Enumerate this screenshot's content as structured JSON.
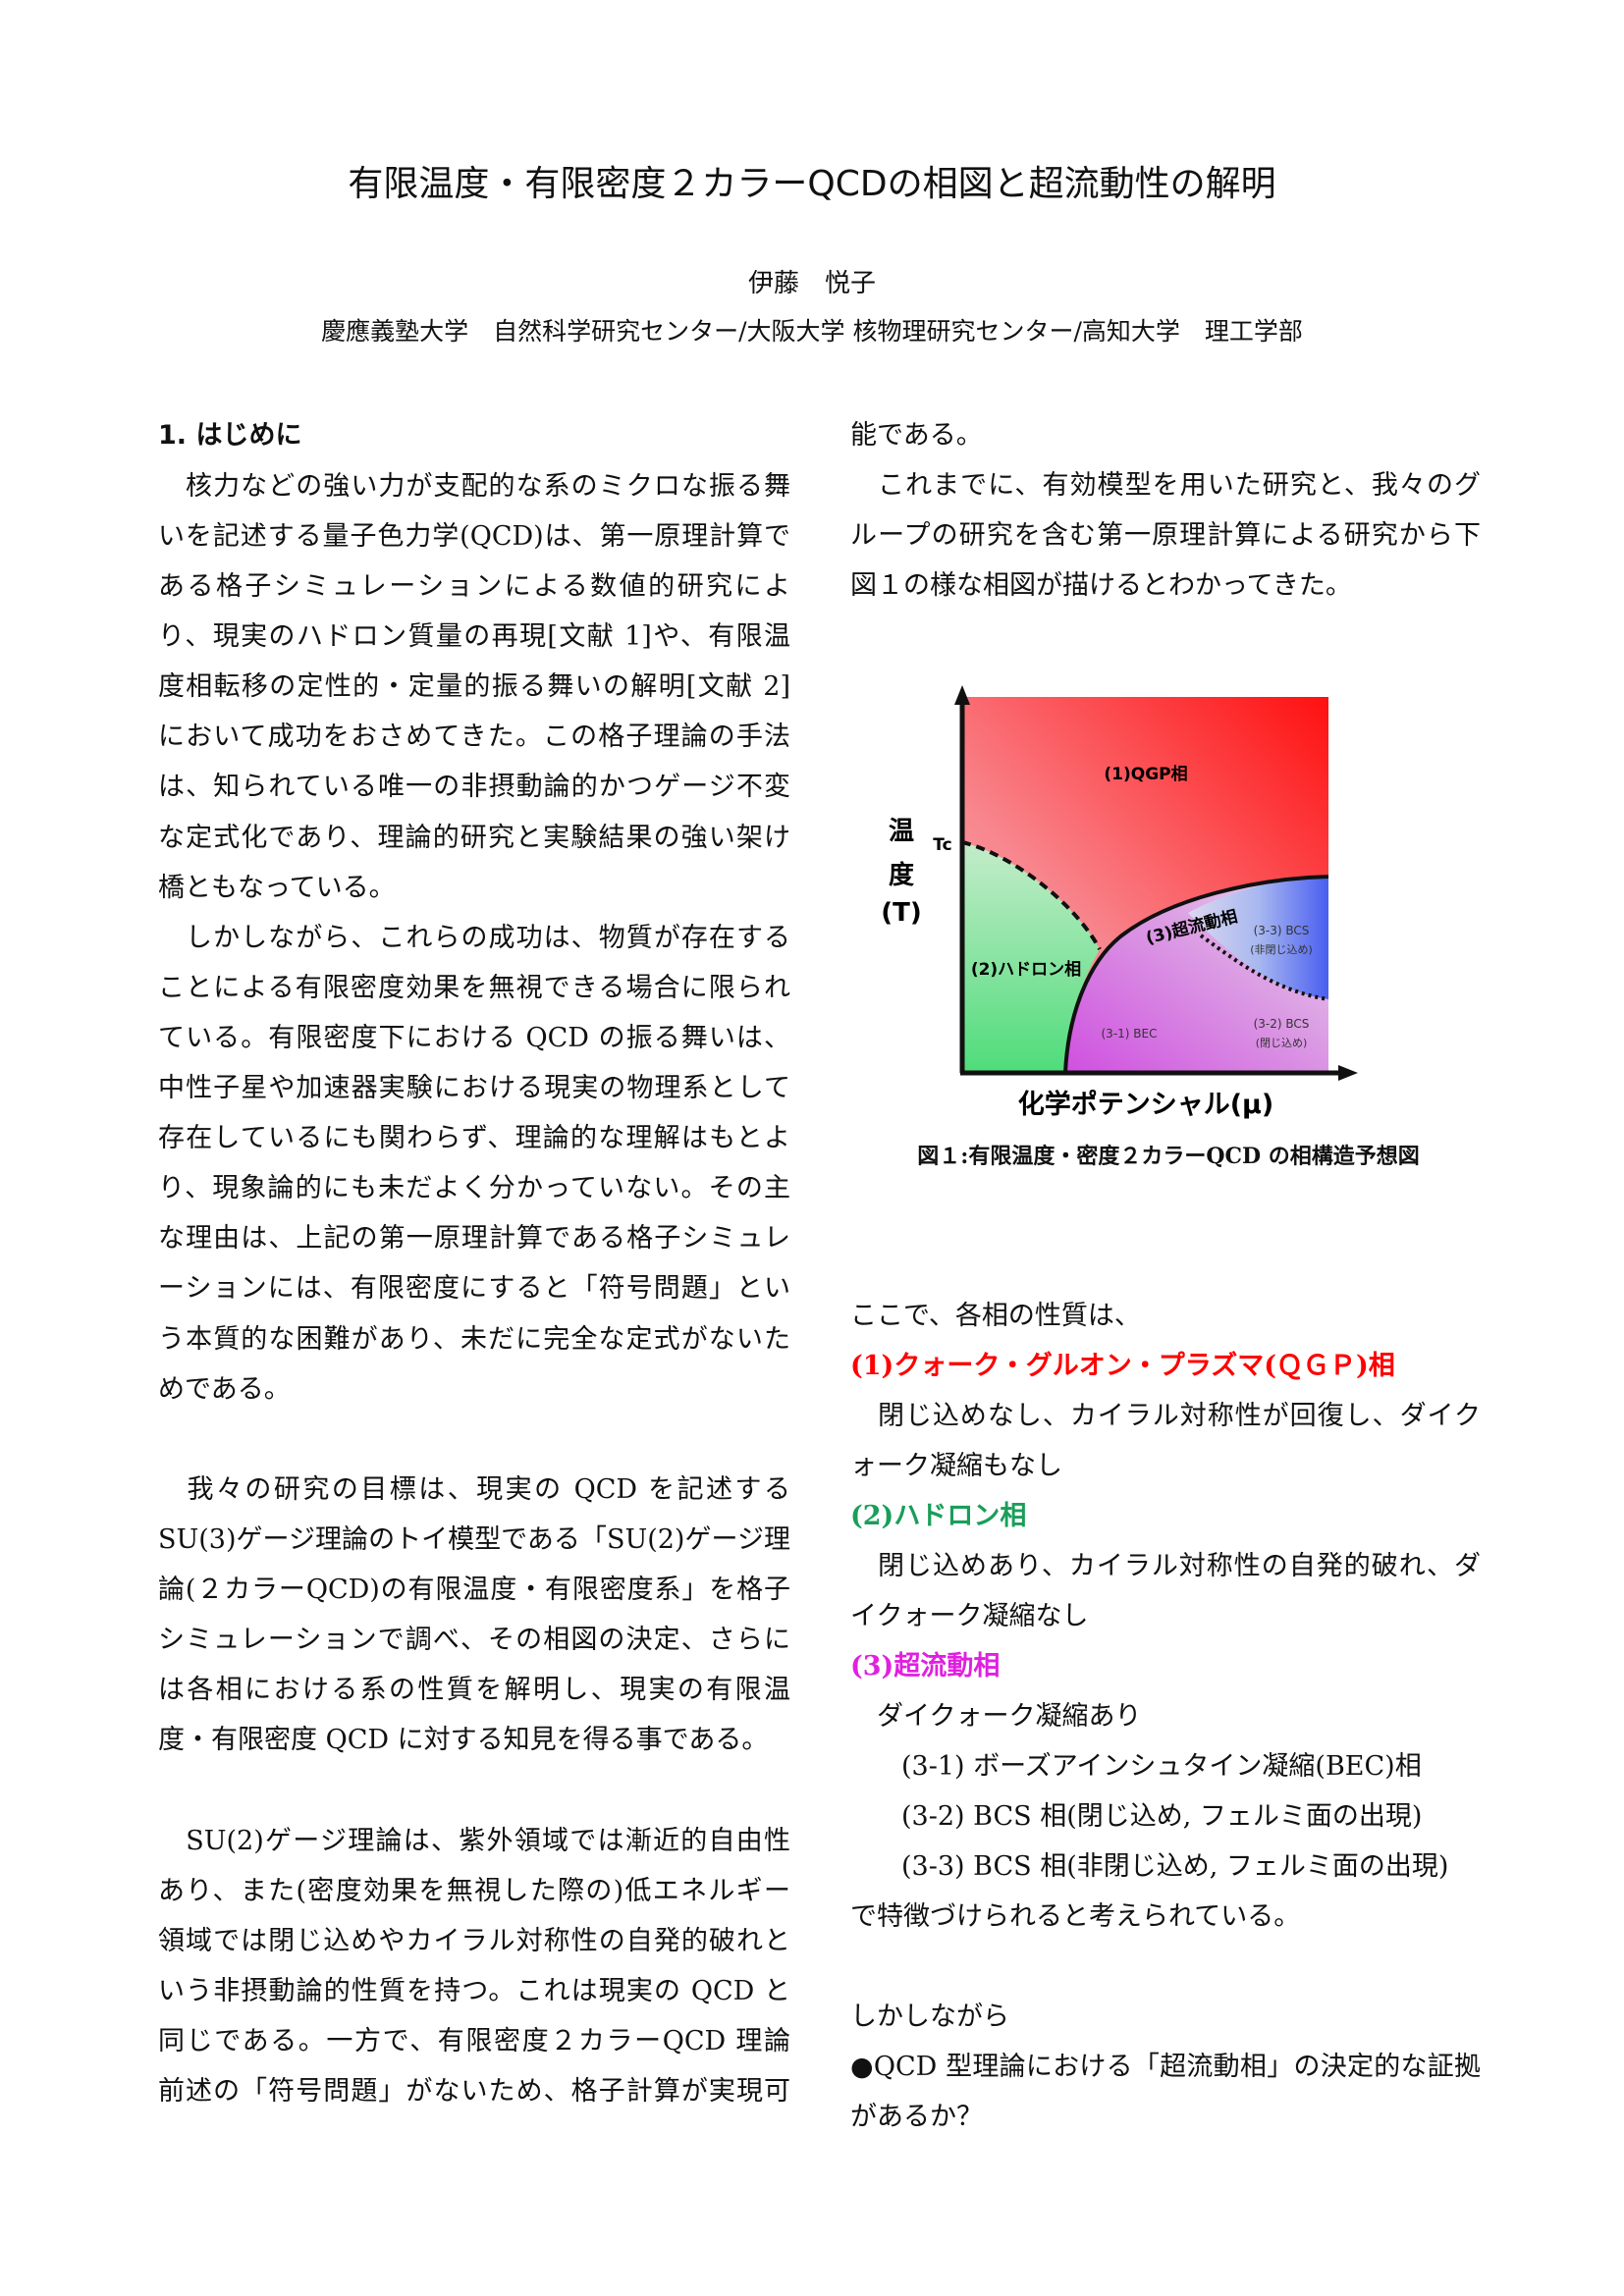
{
  "header": {
    "title": "有限温度・有限密度２カラーQCDの相図と超流動性の解明",
    "author": "伊藤　悦子",
    "affiliation": "慶應義塾大学　自然科学研究センター/大阪大学 核物理研究センター/高知大学　理工学部"
  },
  "left": {
    "heading": "1.  はじめに",
    "lines": [
      "　核力などの強い力が支配的な系のミクロな振る舞",
      "いを記述する量子色力学(QCD)は、第一原理計算で",
      "ある格子シミュレーションによる数値的研究によ",
      "り、現実のハドロン質量の再現[文献 1]や、有限温",
      "度相転移の定性的・定量的振る舞いの解明[文献 2]",
      "において成功をおさめてきた。この格子理論の手法",
      "は、知られている唯一の非摂動論的かつゲージ不変",
      "な定式化であり、理論的研究と実験結果の強い架け",
      "橋ともなっている。",
      "　しかしながら、これらの成功は、物質が存在する",
      "ことによる有限密度効果を無視できる場合に限られ",
      "ている。有限密度下における QCD の振る舞いは、",
      "中性子星や加速器実験における現実の物理系として",
      "存在しているにも関わらず、理論的な理解はもとよ",
      "り、現象論的にも未だよく分かっていない。その主",
      "な理由は、上記の第一原理計算である格子シミュレ",
      "ーションには、有限密度にすると「符号問題」とい",
      "う本質的な困難があり、未だに完全な定式がないた",
      "めである。",
      "　我々の研究の目標は、現実の QCD を記述する",
      "SU(3)ゲージ理論のトイ模型である「SU(2)ゲージ理",
      "論(２カラーQCD)の有限温度・有限密度系」を格子",
      "シミュレーションで調べ、その相図の決定、さらに",
      "は各相における系の性質を解明し、現実の有限温",
      "度・有限密度 QCD に対する知見を得る事である。",
      "　SU(2)ゲージ理論は、紫外領域では漸近的自由性が",
      "あり、また(密度効果を無視した際の)低エネルギー",
      "領域では閉じ込めやカイラル対称性の自発的破れと",
      "いう非摂動論的性質を持つ。これは現実の QCD と",
      "同じである。一方で、有限密度２カラーQCD 理論は、",
      "前述の「符号問題」がないため、格子計算が実現可"
    ]
  },
  "right": {
    "top_lines": [
      "能である。",
      "　これまでに、有効模型を用いた研究と、我々のグ",
      "ループの研究を含む第一原理計算による研究から下",
      "図１の様な相図が描けるとわかってきた。"
    ],
    "intro": "ここで、各相の性質は、",
    "phases": [
      {
        "title": "(1)クォーク・グルオン・プラズマ(ＱＧＰ)相",
        "color": "#ff0000",
        "lines": [
          "　閉じ込めなし、カイラル対称性が回復し、ダイク",
          "ォーク凝縮もなし"
        ]
      },
      {
        "title": "(2)ハドロン相",
        "color": "#1a9e5a",
        "lines": [
          "　閉じ込めあり、カイラル対称性の自発的破れ、ダ",
          "イクォーク凝縮なし"
        ]
      },
      {
        "title": "(3)超流動相",
        "color": "#e020e0",
        "lines": [
          "　ダイクォーク凝縮あり"
        ]
      }
    ],
    "subphases": [
      "(3-1)  ボーズアインシュタイン凝縮(BEC)相",
      "(3-2) BCS 相(閉じ込め, フェルミ面の出現)",
      "(3-3) BCS 相(非閉じ込め, フェルミ面の出現)"
    ],
    "conclusion": "で特徴づけられると考えられている。",
    "however": "しかしながら",
    "question_lines": [
      "●QCD 型理論における「超流動相」の決定的な証拠",
      "があるか？"
    ]
  },
  "figure": {
    "y_label": [
      "温",
      "度",
      "(T)"
    ],
    "tc_label": "Tc",
    "x_label": "化学ポテンシャル(μ)",
    "qgp": "(1)QGP相",
    "hadron": "(2)ハドロン相",
    "superfluid": "(3)超流動相",
    "bec": "(3-1) BEC",
    "bcs_confined": [
      "(3-2) BCS",
      "(閉じ込め)"
    ],
    "bcs_deconfined": [
      "(3-3) BCS",
      "(非閉じ込め)"
    ],
    "caption": "図１:有限温度・密度２カラーQCD の相構造予想図",
    "colors": {
      "qgp": "#ff1a1a",
      "hadron": "#4fdc7a",
      "superfluid": "#d25ae0",
      "bcs": "#4a60f0"
    }
  }
}
